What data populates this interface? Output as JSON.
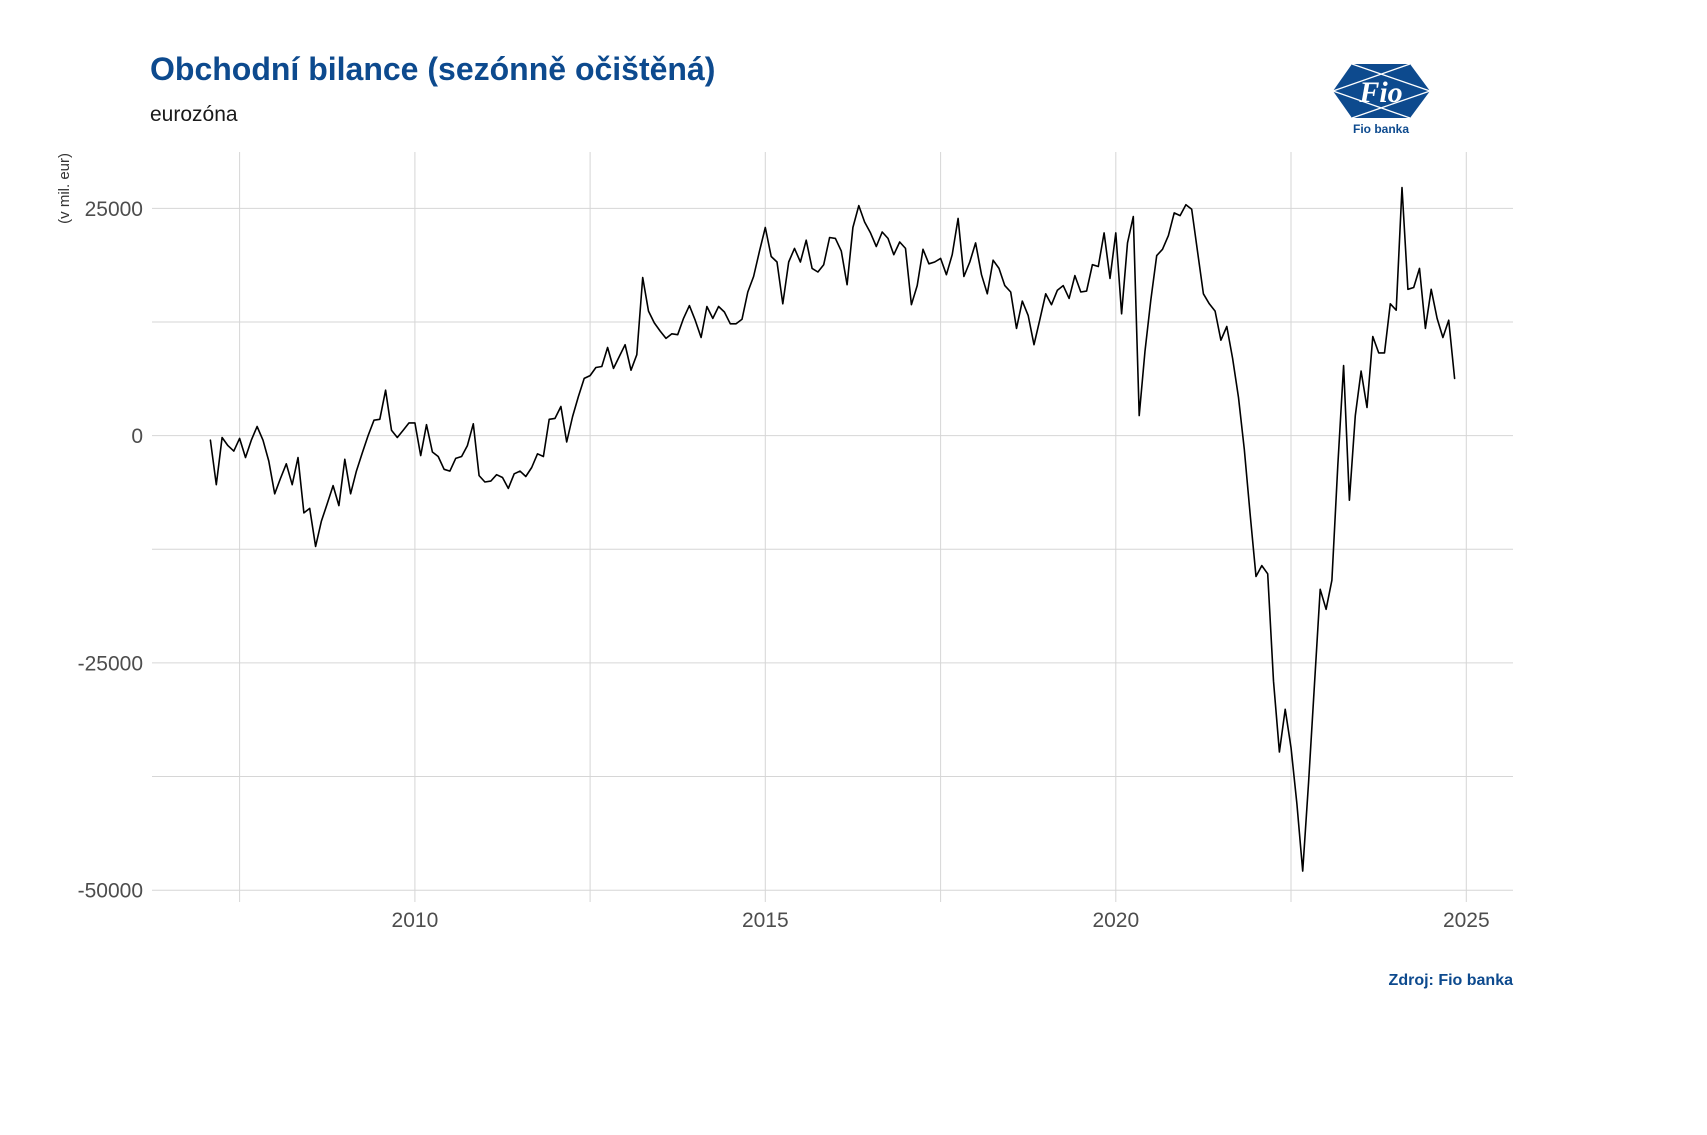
{
  "source": "Zdroj: Fio banka",
  "logo": {
    "mark_text": "Fio",
    "name": "Fio banka",
    "icon": "fio-banka-logo"
  },
  "colors": {
    "brand": "#0d4a8e",
    "line": "#000000",
    "grid": "#d6d6d6",
    "tick_text": "#4d4d4d"
  },
  "chart_data": {
    "type": "line",
    "title": "Obchodní bilance (sezónně očištěná)",
    "subtitle": "eurozóna",
    "xlabel": "",
    "ylabel": "(v mil. eur)",
    "x": [
      "2007-02",
      "2007-03",
      "2007-04",
      "2007-05",
      "2007-06",
      "2007-07",
      "2007-08",
      "2007-09",
      "2007-10",
      "2007-11",
      "2007-12",
      "2008-01",
      "2008-02",
      "2008-03",
      "2008-04",
      "2008-05",
      "2008-06",
      "2008-07",
      "2008-08",
      "2008-09",
      "2008-10",
      "2008-11",
      "2008-12",
      "2009-01",
      "2009-02",
      "2009-03",
      "2009-04",
      "2009-05",
      "2009-06",
      "2009-07",
      "2009-08",
      "2009-09",
      "2009-10",
      "2009-11",
      "2009-12",
      "2010-01",
      "2010-02",
      "2010-03",
      "2010-04",
      "2010-05",
      "2010-06",
      "2010-07",
      "2010-08",
      "2010-09",
      "2010-10",
      "2010-11",
      "2010-12",
      "2011-01",
      "2011-02",
      "2011-03",
      "2011-04",
      "2011-05",
      "2011-06",
      "2011-07",
      "2011-08",
      "2011-09",
      "2011-10",
      "2011-11",
      "2011-12",
      "2012-01",
      "2012-02",
      "2012-03",
      "2012-04",
      "2012-05",
      "2012-06",
      "2012-07",
      "2012-08",
      "2012-09",
      "2012-10",
      "2012-11",
      "2012-12",
      "2013-01",
      "2013-02",
      "2013-03",
      "2013-04",
      "2013-05",
      "2013-06",
      "2013-07",
      "2013-08",
      "2013-09",
      "2013-10",
      "2013-11",
      "2013-12",
      "2014-01",
      "2014-02",
      "2014-03",
      "2014-04",
      "2014-05",
      "2014-06",
      "2014-07",
      "2014-08",
      "2014-09",
      "2014-10",
      "2014-11",
      "2014-12",
      "2015-01",
      "2015-02",
      "2015-03",
      "2015-04",
      "2015-05",
      "2015-06",
      "2015-07",
      "2015-08",
      "2015-09",
      "2015-10",
      "2015-11",
      "2015-12",
      "2016-01",
      "2016-02",
      "2016-03",
      "2016-04",
      "2016-05",
      "2016-06",
      "2016-07",
      "2016-08",
      "2016-09",
      "2016-10",
      "2016-11",
      "2016-12",
      "2017-01",
      "2017-02",
      "2017-03",
      "2017-04",
      "2017-05",
      "2017-06",
      "2017-07",
      "2017-08",
      "2017-09",
      "2017-10",
      "2017-11",
      "2017-12",
      "2018-01",
      "2018-02",
      "2018-03",
      "2018-04",
      "2018-05",
      "2018-06",
      "2018-07",
      "2018-08",
      "2018-09",
      "2018-10",
      "2018-11",
      "2018-12",
      "2019-01",
      "2019-02",
      "2019-03",
      "2019-04",
      "2019-05",
      "2019-06",
      "2019-07",
      "2019-08",
      "2019-09",
      "2019-10",
      "2019-11",
      "2019-12",
      "2020-01",
      "2020-02",
      "2020-03",
      "2020-04",
      "2020-05",
      "2020-06",
      "2020-07",
      "2020-08",
      "2020-09",
      "2020-10",
      "2020-11",
      "2020-12",
      "2021-01",
      "2021-02",
      "2021-03",
      "2021-04",
      "2021-05",
      "2021-06",
      "2021-07",
      "2021-08",
      "2021-09",
      "2021-10",
      "2021-11",
      "2021-12",
      "2022-01",
      "2022-02",
      "2022-03",
      "2022-04",
      "2022-05",
      "2022-06",
      "2022-07",
      "2022-08",
      "2022-09",
      "2022-10",
      "2022-11",
      "2022-12",
      "2023-01",
      "2023-02",
      "2023-03",
      "2023-04",
      "2023-05",
      "2023-06",
      "2023-07",
      "2023-08",
      "2023-09",
      "2023-10",
      "2023-11",
      "2023-12",
      "2024-01",
      "2024-02",
      "2024-03",
      "2024-04",
      "2024-05",
      "2024-06",
      "2024-07",
      "2024-08",
      "2024-09",
      "2024-10",
      "2024-11"
    ],
    "series": [
      {
        "values": [
          -500,
          -5400,
          -200,
          -1100,
          -1700,
          -300,
          -2400,
          -500,
          1000,
          -500,
          -2800,
          -6400,
          -4700,
          -3100,
          -5400,
          -2400,
          -8500,
          -8000,
          -12200,
          -9400,
          -7500,
          -5500,
          -7700,
          -2600,
          -6400,
          -3900,
          -1900,
          0,
          1700,
          1800,
          5000,
          600,
          -200,
          600,
          1400,
          1400,
          -2200,
          1200,
          -1800,
          -2300,
          -3700,
          -3900,
          -2500,
          -2300,
          -1100,
          1300,
          -4400,
          -5100,
          -5000,
          -4300,
          -4600,
          -5800,
          -4200,
          -3900,
          -4500,
          -3500,
          -2000,
          -2300,
          1800,
          1900,
          3200,
          -700,
          2100,
          4300,
          6300,
          6600,
          7500,
          7600,
          9700,
          7400,
          8700,
          10000,
          7200,
          8900,
          17400,
          13700,
          12400,
          11500,
          10700,
          11200,
          11100,
          12900,
          14300,
          12700,
          10800,
          14200,
          12900,
          14200,
          13600,
          12300,
          12300,
          12800,
          15800,
          17500,
          20300,
          22900,
          19700,
          19100,
          14500,
          19100,
          20600,
          19100,
          21500,
          18400,
          18000,
          18800,
          21800,
          21700,
          20300,
          16600,
          22900,
          25300,
          23500,
          22300,
          20800,
          22400,
          21700,
          19900,
          21300,
          20600,
          14400,
          16500,
          20500,
          18900,
          19100,
          19500,
          17700,
          19900,
          23900,
          17500,
          19100,
          21200,
          17700,
          15600,
          19300,
          18400,
          16500,
          15800,
          11800,
          14800,
          13200,
          10000,
          12800,
          15600,
          14400,
          16000,
          16500,
          15100,
          17600,
          15800,
          15900,
          18800,
          18600,
          22300,
          17300,
          22300,
          13400,
          21200,
          24100,
          2200,
          9300,
          14900,
          19800,
          20500,
          22000,
          24500,
          24200,
          25400,
          24900,
          20200,
          15600,
          14500,
          13700,
          10500,
          12000,
          8500,
          4200,
          -1500,
          -8600,
          -15500,
          -14300,
          -15200,
          -27000,
          -34800,
          -30100,
          -34300,
          -40500,
          -47900,
          -38100,
          -27500,
          -16900,
          -19100,
          -15900,
          -3300,
          7700,
          -7100,
          2200,
          7100,
          3100,
          10900,
          9100,
          9100,
          14500,
          13800,
          27300,
          16100,
          16300,
          18400,
          11800,
          16100,
          12900,
          10800,
          12700,
          6300
        ]
      }
    ],
    "x_ticks": [
      2010,
      2015,
      2020,
      2025
    ],
    "x_tick_labels": [
      "2010",
      "2015",
      "2020",
      "2025"
    ],
    "y_ticks": [
      25000,
      0,
      -25000,
      -50000
    ],
    "y_tick_labels": [
      "25000",
      "0",
      "-25000",
      "-50000"
    ],
    "xlim": [
      "2006-04",
      "2025-09"
    ],
    "ylim": [
      -51300,
      31200
    ],
    "grid": true,
    "grid_minor": true,
    "legend": "none"
  }
}
